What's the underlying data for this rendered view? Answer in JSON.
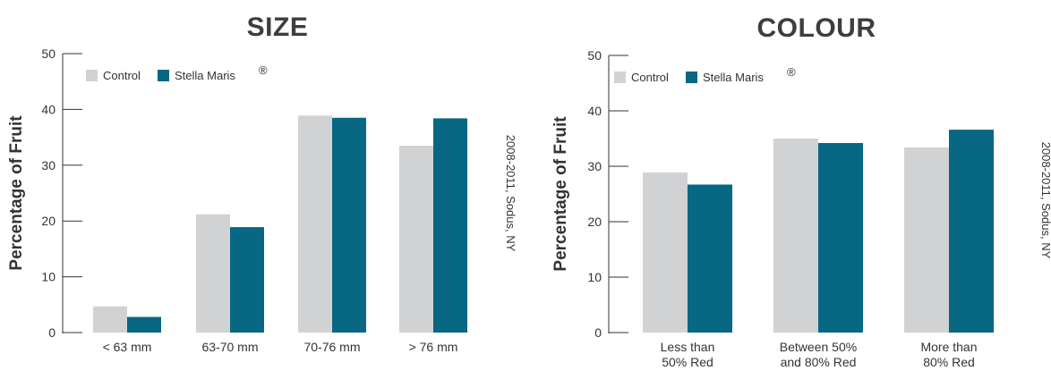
{
  "colors": {
    "control": "#d1d2d4",
    "stella": "#086782",
    "axis": "#333333"
  },
  "chart_data": [
    {
      "type": "bar",
      "title": "SIZE",
      "ylabel": "Percentage of Fruit",
      "xlabel": "",
      "ylim": [
        0,
        50
      ],
      "yticks": [
        "0",
        "10",
        "20",
        "30",
        "40",
        "50"
      ],
      "categories": [
        [
          "< 63 mm"
        ],
        [
          "63-70 mm"
        ],
        [
          "70-76 mm"
        ],
        [
          "> 76 mm"
        ]
      ],
      "series": [
        {
          "name": "Control",
          "values": [
            4.7,
            21.2,
            38.9,
            33.5
          ]
        },
        {
          "name": "Stella Maris",
          "values": [
            2.8,
            18.9,
            38.5,
            38.4
          ]
        }
      ],
      "legend_position": "top-left",
      "grid": false,
      "side_note": "2008-2011, Sodus, NY"
    },
    {
      "type": "bar",
      "title": "COLOUR",
      "ylabel": "Percentage of Fruit",
      "xlabel": "",
      "ylim": [
        0,
        50
      ],
      "yticks": [
        "0",
        "10",
        "20",
        "30",
        "40",
        "50"
      ],
      "categories": [
        [
          "Less than",
          "50% Red"
        ],
        [
          "Between 50%",
          "and 80% Red"
        ],
        [
          "More than",
          "80% Red"
        ]
      ],
      "series": [
        {
          "name": "Control",
          "values": [
            28.9,
            35.0,
            33.4
          ]
        },
        {
          "name": "Stella Maris",
          "values": [
            26.7,
            34.2,
            36.6
          ]
        }
      ],
      "legend_position": "top-left",
      "grid": false,
      "side_note": "2008-2011, Sodus, NY"
    }
  ]
}
